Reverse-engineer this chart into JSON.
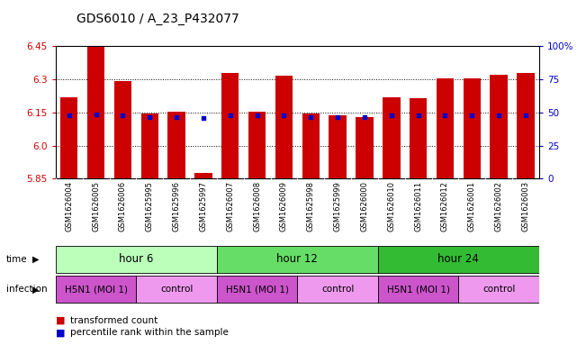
{
  "title": "GDS6010 / A_23_P432077",
  "samples": [
    "GSM1626004",
    "GSM1626005",
    "GSM1626006",
    "GSM1625995",
    "GSM1625996",
    "GSM1625997",
    "GSM1626007",
    "GSM1626008",
    "GSM1626009",
    "GSM1625998",
    "GSM1625999",
    "GSM1626000",
    "GSM1626010",
    "GSM1626011",
    "GSM1626012",
    "GSM1626001",
    "GSM1626002",
    "GSM1626003"
  ],
  "bar_values": [
    6.22,
    6.45,
    6.29,
    6.145,
    6.155,
    5.875,
    6.33,
    6.155,
    6.315,
    6.145,
    6.135,
    6.13,
    6.22,
    6.215,
    6.305,
    6.305,
    6.32,
    6.33
  ],
  "percentile_positions": [
    6.135,
    6.14,
    6.135,
    6.13,
    6.13,
    6.125,
    6.135,
    6.135,
    6.135,
    6.13,
    6.13,
    6.13,
    6.135,
    6.135,
    6.135,
    6.135,
    6.135,
    6.135
  ],
  "y_min": 5.85,
  "y_max": 6.45,
  "y_ticks": [
    5.85,
    6.0,
    6.15,
    6.3,
    6.45
  ],
  "right_y_ticks": [
    0,
    25,
    50,
    75,
    100
  ],
  "right_y_labels": [
    "0",
    "25",
    "50",
    "75",
    "100%"
  ],
  "bar_color": "#cc0000",
  "percentile_color": "#0000cc",
  "time_groups": [
    {
      "label": "hour 6",
      "start": 0,
      "end": 6,
      "color": "#bbffbb"
    },
    {
      "label": "hour 12",
      "start": 6,
      "end": 12,
      "color": "#66dd66"
    },
    {
      "label": "hour 24",
      "start": 12,
      "end": 18,
      "color": "#33bb33"
    }
  ],
  "infections": [
    {
      "label": "H5N1 (MOI 1)",
      "start": 0,
      "end": 3,
      "color": "#cc55cc"
    },
    {
      "label": "control",
      "start": 3,
      "end": 6,
      "color": "#ee99ee"
    },
    {
      "label": "H5N1 (MOI 1)",
      "start": 6,
      "end": 9,
      "color": "#cc55cc"
    },
    {
      "label": "control",
      "start": 9,
      "end": 12,
      "color": "#ee99ee"
    },
    {
      "label": "H5N1 (MOI 1)",
      "start": 12,
      "end": 15,
      "color": "#cc55cc"
    },
    {
      "label": "control",
      "start": 15,
      "end": 18,
      "color": "#ee99ee"
    }
  ],
  "bg_color": "#ffffff",
  "tick_label_color_left": "#cc0000",
  "tick_label_color_right": "#0000cc",
  "bar_width": 0.65,
  "label_area_color": "#cccccc",
  "legend_red_label": "transformed count",
  "legend_blue_label": "percentile rank within the sample",
  "time_label": "time",
  "infection_label": "infection"
}
